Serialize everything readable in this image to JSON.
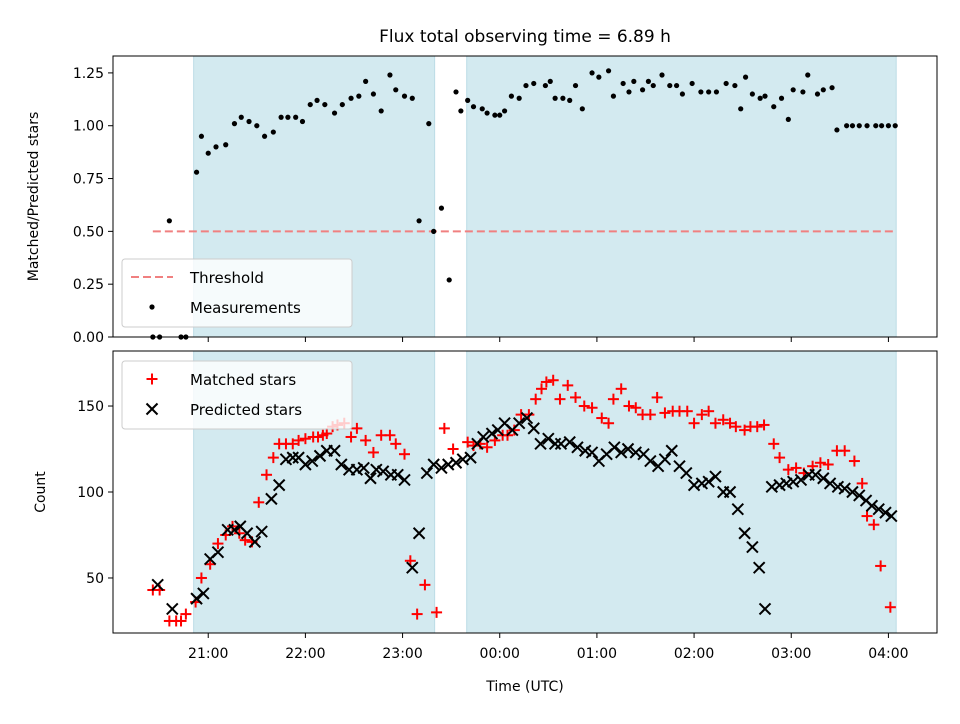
{
  "chart_data": [
    {
      "type": "scatter",
      "title": "Flux total observing time = 6.89 h",
      "ylabel": "Matched/Predicted stars",
      "xlabel": "",
      "xlim_hours": [
        20.02,
        28.5
      ],
      "ylim": [
        0,
        1.33
      ],
      "yticks": [
        0,
        0.25,
        0.5,
        0.75,
        1.0,
        1.25
      ],
      "ytick_labels": [
        "0.00",
        "0.25",
        "0.50",
        "0.75",
        "1.00",
        "1.25"
      ],
      "threshold": 0.5,
      "threshold_color": "#f08080",
      "shaded_bands_hours": [
        [
          20.85,
          23.33
        ],
        [
          23.66,
          28.08
        ]
      ],
      "band_color": "#d3eaf0",
      "legend": {
        "placement": "lower-left",
        "entries": [
          "Threshold",
          "Measurements"
        ]
      },
      "series": [
        {
          "name": "Measurements",
          "marker": "dot",
          "color": "#000000",
          "x": [
            20.43,
            20.5,
            20.6,
            20.72,
            20.77,
            20.88,
            20.93,
            21.0,
            21.08,
            21.18,
            21.27,
            21.34,
            21.42,
            21.5,
            21.58,
            21.67,
            21.75,
            21.82,
            21.9,
            21.97,
            22.05,
            22.12,
            22.2,
            22.3,
            22.38,
            22.47,
            22.55,
            22.62,
            22.7,
            22.78,
            22.87,
            22.93,
            23.02,
            23.1,
            23.17,
            23.27,
            23.32,
            23.4,
            23.48,
            23.55,
            23.6,
            23.67,
            23.73,
            23.82,
            23.87,
            23.95,
            24.0,
            24.05,
            24.12,
            24.2,
            24.27,
            24.35,
            24.47,
            24.52,
            24.57,
            24.65,
            24.72,
            24.78,
            24.85,
            24.95,
            25.02,
            25.12,
            25.17,
            25.27,
            25.33,
            25.38,
            25.47,
            25.53,
            25.58,
            25.67,
            25.75,
            25.82,
            25.88,
            25.98,
            26.07,
            26.15,
            26.23,
            26.33,
            26.42,
            26.48,
            26.53,
            26.6,
            26.68,
            26.73,
            26.82,
            26.9,
            26.97,
            27.02,
            27.12,
            27.17,
            27.27,
            27.33,
            27.42,
            27.47,
            27.57,
            27.63,
            27.7,
            27.78,
            27.87,
            27.93,
            28.0,
            28.07
          ],
          "y": [
            0.0,
            0.0,
            0.55,
            0.0,
            0.0,
            0.78,
            0.95,
            0.87,
            0.9,
            0.91,
            1.01,
            1.04,
            1.02,
            1.0,
            0.95,
            0.97,
            1.04,
            1.04,
            1.04,
            1.02,
            1.1,
            1.12,
            1.1,
            1.06,
            1.1,
            1.13,
            1.14,
            1.21,
            1.15,
            1.07,
            1.24,
            1.17,
            1.14,
            1.13,
            0.55,
            1.01,
            0.5,
            0.61,
            0.27,
            1.16,
            1.07,
            1.12,
            1.09,
            1.08,
            1.06,
            1.05,
            1.05,
            1.07,
            1.14,
            1.13,
            1.19,
            1.2,
            1.19,
            1.21,
            1.13,
            1.13,
            1.12,
            1.19,
            1.08,
            1.25,
            1.23,
            1.26,
            1.14,
            1.2,
            1.16,
            1.21,
            1.17,
            1.21,
            1.19,
            1.24,
            1.19,
            1.19,
            1.15,
            1.2,
            1.16,
            1.16,
            1.16,
            1.2,
            1.19,
            1.08,
            1.23,
            1.15,
            1.13,
            1.14,
            1.09,
            1.13,
            1.03,
            1.17,
            1.16,
            1.24,
            1.15,
            1.17,
            1.18,
            0.98,
            1.0,
            1.0,
            1.0,
            1.0,
            1.0,
            1.0,
            1.0,
            1.0
          ]
        }
      ]
    },
    {
      "type": "scatter",
      "title": "",
      "ylabel": "Count",
      "xlabel": "Time (UTC)",
      "xlim_hours": [
        20.02,
        28.5
      ],
      "ylim": [
        18,
        182
      ],
      "yticks": [
        50,
        100,
        150
      ],
      "ytick_labels": [
        "50",
        "100",
        "150"
      ],
      "xticks_hours": [
        21,
        22,
        23,
        24,
        25,
        26,
        27,
        28
      ],
      "xtick_labels": [
        "21:00",
        "22:00",
        "23:00",
        "00:00",
        "01:00",
        "02:00",
        "03:00",
        "04:00"
      ],
      "shaded_bands_hours": [
        [
          20.85,
          23.33
        ],
        [
          23.66,
          28.08
        ]
      ],
      "band_color": "#d3eaf0",
      "legend": {
        "placement": "top-left",
        "entries": [
          "Matched stars",
          "Predicted stars"
        ]
      },
      "series": [
        {
          "name": "Matched stars",
          "marker": "plus",
          "color": "#ff0000",
          "x": [
            20.43,
            20.5,
            20.6,
            20.67,
            20.72,
            20.77,
            20.87,
            20.93,
            21.02,
            21.1,
            21.18,
            21.25,
            21.32,
            21.38,
            21.45,
            21.52,
            21.6,
            21.67,
            21.73,
            21.8,
            21.87,
            21.93,
            22.0,
            22.08,
            22.13,
            22.18,
            22.22,
            22.28,
            22.33,
            22.4,
            22.47,
            22.53,
            22.62,
            22.7,
            22.78,
            22.87,
            22.93,
            23.02,
            23.08,
            23.15,
            23.23,
            23.35,
            23.43,
            23.52,
            23.67,
            23.73,
            23.8,
            23.87,
            23.95,
            24.03,
            24.08,
            24.15,
            24.22,
            24.3,
            24.37,
            24.43,
            24.48,
            24.55,
            24.62,
            24.7,
            24.78,
            24.87,
            24.95,
            25.05,
            25.12,
            25.17,
            25.25,
            25.33,
            25.4,
            25.47,
            25.55,
            25.62,
            25.7,
            25.78,
            25.85,
            25.93,
            26.0,
            26.08,
            26.15,
            26.22,
            26.3,
            26.37,
            26.43,
            26.52,
            26.58,
            26.65,
            26.72,
            26.82,
            26.88,
            26.97,
            27.05,
            27.13,
            27.22,
            27.3,
            27.38,
            27.47,
            27.55,
            27.65,
            27.73,
            27.78,
            27.85,
            27.92,
            28.02
          ],
          "y": [
            43,
            43,
            25,
            25,
            25,
            29,
            36,
            50,
            58,
            70,
            75,
            80,
            76,
            72,
            71,
            94,
            110,
            120,
            128,
            128,
            128,
            130,
            131,
            132,
            132,
            133,
            134,
            138,
            139,
            140,
            132,
            137,
            130,
            123,
            133,
            133,
            128,
            122,
            60,
            29,
            46,
            30,
            137,
            125,
            129,
            127,
            128,
            126,
            130,
            133,
            133,
            136,
            145,
            145,
            154,
            160,
            164,
            165,
            154,
            162,
            155,
            150,
            149,
            143,
            140,
            154,
            160,
            150,
            149,
            145,
            145,
            155,
            146,
            147,
            147,
            147,
            140,
            145,
            147,
            140,
            142,
            140,
            138,
            136,
            138,
            138,
            139,
            128,
            120,
            113,
            114,
            111,
            115,
            117,
            116,
            124,
            124,
            118,
            105,
            86,
            81,
            57,
            33
          ]
        },
        {
          "name": "Predicted stars",
          "marker": "x",
          "color": "#000000",
          "x": [
            20.48,
            20.63,
            20.88,
            20.95,
            21.02,
            21.1,
            21.2,
            21.27,
            21.33,
            21.4,
            21.48,
            21.55,
            21.65,
            21.73,
            21.8,
            21.87,
            21.93,
            22.0,
            22.07,
            22.15,
            22.22,
            22.3,
            22.37,
            22.45,
            22.53,
            22.6,
            22.67,
            22.73,
            22.8,
            22.88,
            22.95,
            23.02,
            23.1,
            23.17,
            23.25,
            23.32,
            23.4,
            23.47,
            23.55,
            23.62,
            23.7,
            23.77,
            23.83,
            23.92,
            23.98,
            24.05,
            24.13,
            24.2,
            24.28,
            24.35,
            24.42,
            24.5,
            24.57,
            24.63,
            24.72,
            24.8,
            24.88,
            24.95,
            25.02,
            25.1,
            25.18,
            25.25,
            25.32,
            25.4,
            25.48,
            25.55,
            25.63,
            25.7,
            25.77,
            25.85,
            25.92,
            26.0,
            26.08,
            26.15,
            26.22,
            26.3,
            26.37,
            26.45,
            26.52,
            26.6,
            26.67,
            26.73,
            26.8,
            26.88,
            26.95,
            27.02,
            27.1,
            27.18,
            27.25,
            27.33,
            27.4,
            27.48,
            27.55,
            27.63,
            27.7,
            27.77,
            27.83,
            27.9,
            27.97,
            28.03
          ],
          "y": [
            46,
            32,
            38,
            41,
            61,
            65,
            78,
            78,
            80,
            76,
            71,
            77,
            96,
            104,
            119,
            120,
            120,
            116,
            118,
            121,
            124,
            124,
            116,
            113,
            113,
            114,
            108,
            113,
            112,
            110,
            110,
            107,
            56,
            76,
            111,
            116,
            114,
            116,
            117,
            119,
            120,
            128,
            132,
            134,
            136,
            140,
            136,
            140,
            143,
            137,
            128,
            131,
            128,
            128,
            129,
            126,
            124,
            123,
            118,
            122,
            126,
            123,
            125,
            123,
            122,
            118,
            115,
            119,
            124,
            115,
            111,
            104,
            105,
            106,
            109,
            100,
            100,
            90,
            76,
            68,
            56,
            32,
            103,
            104,
            105,
            106,
            107,
            110,
            110,
            108,
            105,
            103,
            102,
            100,
            98,
            95,
            92,
            90,
            88,
            86
          ]
        }
      ]
    }
  ]
}
